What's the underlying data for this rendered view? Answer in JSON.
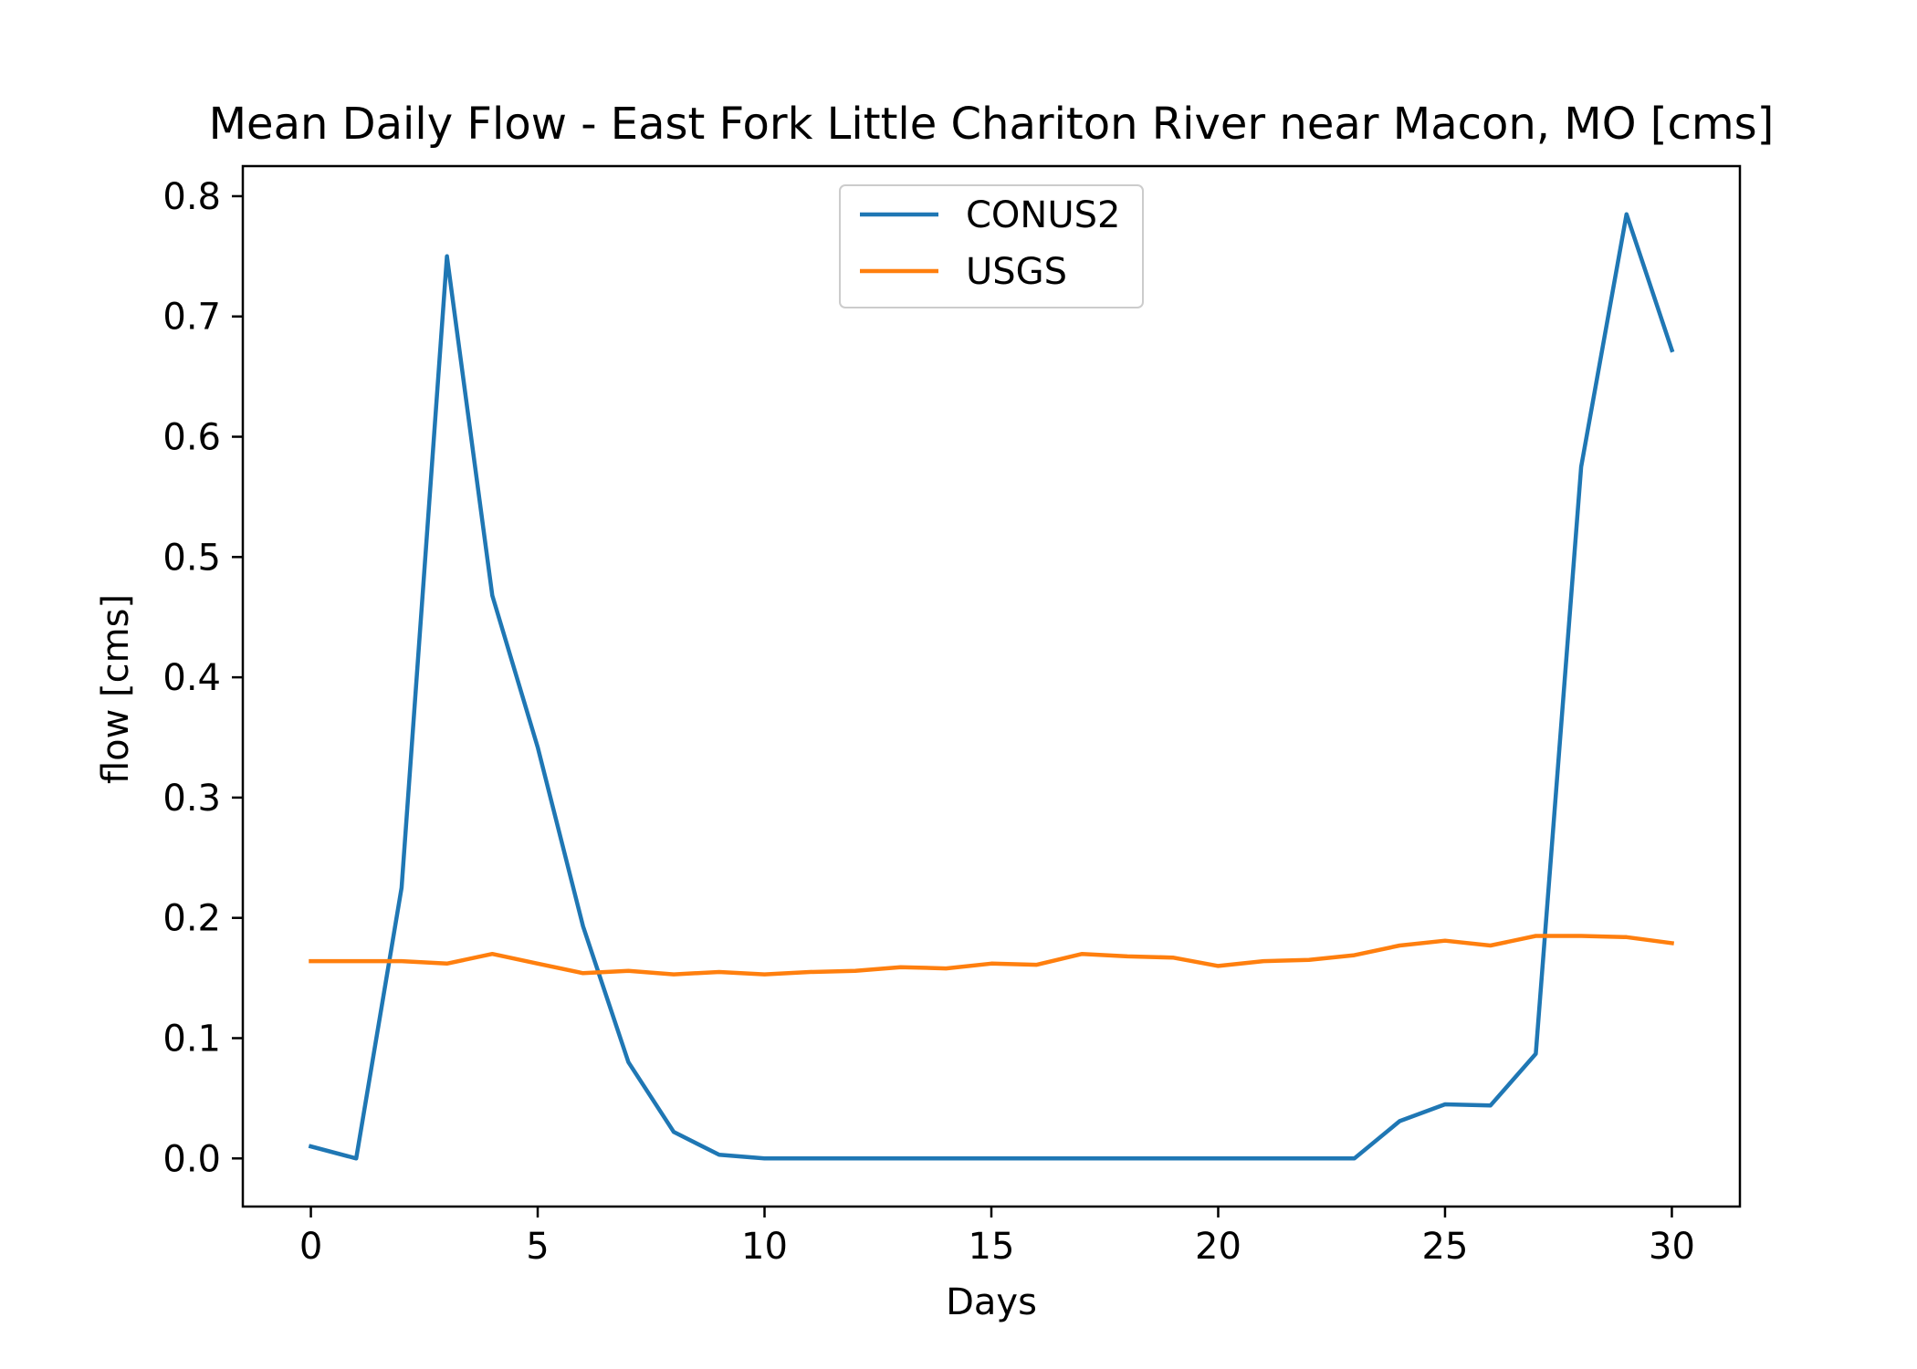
{
  "chart_data": {
    "type": "line",
    "title": "Mean Daily Flow - East Fork Little Chariton River near Macon, MO [cms]",
    "xlabel": "Days",
    "ylabel": "flow [cms]",
    "xlim": [
      -1.5,
      31.5
    ],
    "ylim": [
      -0.04,
      0.825
    ],
    "x_ticks": [
      0,
      5,
      10,
      15,
      20,
      25,
      30
    ],
    "x_tick_labels": [
      "0",
      "5",
      "10",
      "15",
      "20",
      "25",
      "30"
    ],
    "y_ticks": [
      0.0,
      0.1,
      0.2,
      0.3,
      0.4,
      0.5,
      0.6,
      0.7,
      0.8
    ],
    "y_tick_labels": [
      "0.0",
      "0.1",
      "0.2",
      "0.3",
      "0.4",
      "0.5",
      "0.6",
      "0.7",
      "0.8"
    ],
    "grid": false,
    "legend": {
      "position": "top-center"
    },
    "x": [
      0,
      1,
      2,
      3,
      4,
      5,
      6,
      7,
      8,
      9,
      10,
      11,
      12,
      13,
      14,
      15,
      16,
      17,
      18,
      19,
      20,
      21,
      22,
      23,
      24,
      25,
      26,
      27,
      28,
      29,
      30
    ],
    "series": [
      {
        "name": "CONUS2",
        "color": "#1f77b4",
        "values": [
          0.01,
          0.0,
          0.225,
          0.75,
          0.468,
          0.342,
          0.193,
          0.08,
          0.022,
          0.003,
          0.0,
          0.0,
          0.0,
          0.0,
          0.0,
          0.0,
          0.0,
          0.0,
          0.0,
          0.0,
          0.0,
          0.0,
          0.0,
          0.0,
          0.031,
          0.045,
          0.044,
          0.087,
          0.575,
          0.785,
          0.672
        ]
      },
      {
        "name": "USGS",
        "color": "#ff7f0e",
        "values": [
          0.164,
          0.164,
          0.164,
          0.162,
          0.17,
          0.162,
          0.154,
          0.156,
          0.153,
          0.155,
          0.153,
          0.155,
          0.156,
          0.159,
          0.158,
          0.162,
          0.161,
          0.17,
          0.168,
          0.167,
          0.16,
          0.164,
          0.165,
          0.169,
          0.177,
          0.181,
          0.177,
          0.185,
          0.185,
          0.184,
          0.179
        ]
      }
    ]
  }
}
